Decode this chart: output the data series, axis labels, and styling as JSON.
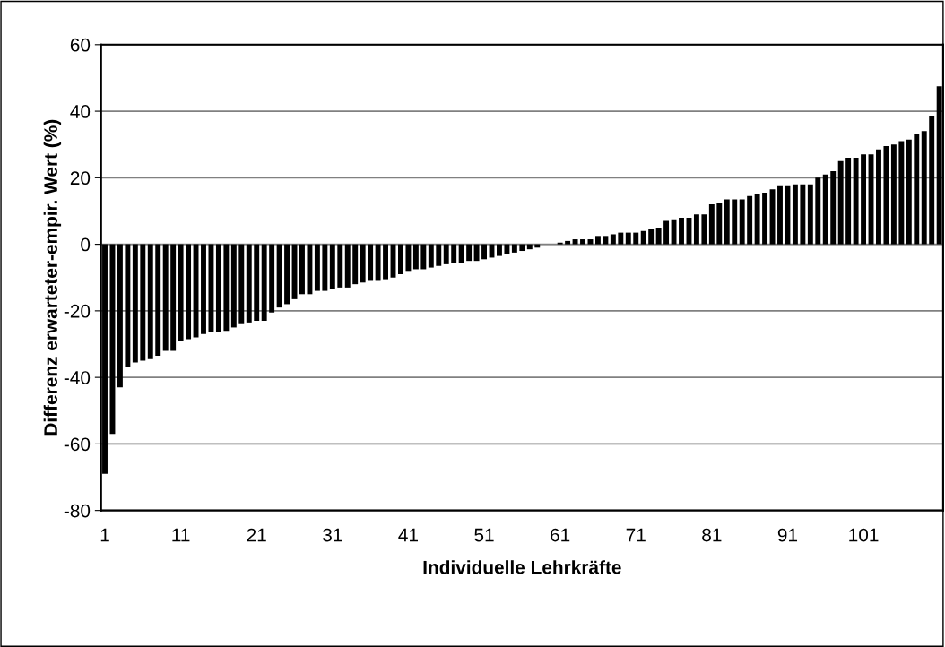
{
  "chart_data": {
    "type": "bar",
    "xlabel": "Individuelle Lehrkräfte",
    "ylabel": "Differenz erwarteter-empir. Wert (%)",
    "categories": [
      "1",
      null,
      null,
      null,
      null,
      null,
      null,
      null,
      null,
      null,
      "11",
      null,
      null,
      null,
      null,
      null,
      null,
      null,
      null,
      null,
      "21",
      null,
      null,
      null,
      null,
      null,
      null,
      null,
      null,
      null,
      "31",
      null,
      null,
      null,
      null,
      null,
      null,
      null,
      null,
      null,
      "41",
      null,
      null,
      null,
      null,
      null,
      null,
      null,
      null,
      null,
      "51",
      null,
      null,
      null,
      null,
      null,
      null,
      null,
      null,
      null,
      "61",
      null,
      null,
      null,
      null,
      null,
      null,
      null,
      null,
      null,
      "71",
      null,
      null,
      null,
      null,
      null,
      null,
      null,
      null,
      null,
      "81",
      null,
      null,
      null,
      null,
      null,
      null,
      null,
      null,
      null,
      "91",
      null,
      null,
      null,
      null,
      null,
      null,
      null,
      null,
      null,
      "101",
      null,
      null,
      null,
      null,
      null,
      null,
      null,
      null,
      null,
      null
    ],
    "values": [
      -69,
      -57,
      -43,
      -37,
      -35.5,
      -35,
      -34.5,
      -33.5,
      -32,
      -32,
      -29,
      -28.5,
      -28,
      -27,
      -26.5,
      -26.5,
      -26,
      -25,
      -24,
      -23.5,
      -23,
      -23,
      -20.5,
      -19,
      -18,
      -16.5,
      -15,
      -15,
      -14,
      -14,
      -13.5,
      -13,
      -13,
      -12,
      -11.5,
      -11,
      -11,
      -10.5,
      -10,
      -9,
      -8,
      -7.5,
      -7.5,
      -7,
      -6.5,
      -6,
      -5.5,
      -5.5,
      -5,
      -5,
      -4.5,
      -4,
      -3.5,
      -3,
      -2.5,
      -2,
      -1.5,
      -1,
      0,
      0,
      0.5,
      1,
      1.5,
      1.5,
      1.5,
      2.5,
      2.5,
      3,
      3.5,
      3.5,
      3.5,
      4,
      4.5,
      5,
      7,
      7.5,
      8,
      8,
      9,
      9,
      12,
      12.5,
      13.5,
      13.5,
      13.5,
      14.5,
      15,
      15.5,
      16.5,
      17.5,
      17.5,
      18,
      18,
      18,
      20,
      21,
      22,
      25,
      26,
      26,
      27,
      27,
      28.5,
      29.5,
      30,
      31,
      31.5,
      33,
      34,
      38.5,
      47.5
    ],
    "color": "#000000",
    "ylim": [
      -80,
      60
    ],
    "yticks": [
      -80,
      -60,
      -40,
      -20,
      0,
      20,
      40,
      60
    ],
    "grid": "y"
  }
}
